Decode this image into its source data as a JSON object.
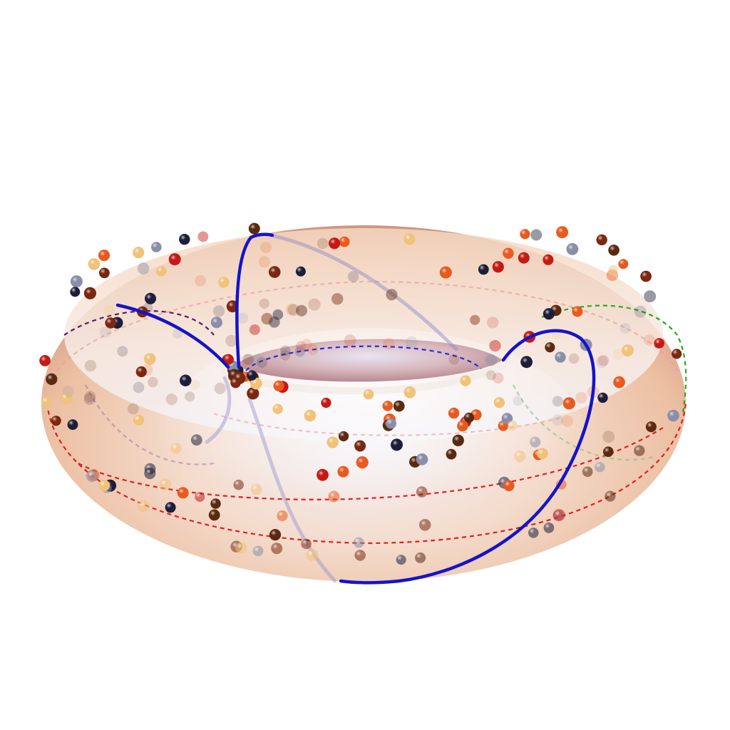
{
  "figure": {
    "kind": "torus-surface-with-points-and-curves",
    "colors": {
      "background": "#ffffff",
      "surface_light": "#f6f1f4",
      "surface_mid": "#f0c9ad",
      "surface_dark": "#c98f7a",
      "hole_shadow": "#b98a90",
      "highlight": "#f3f2fb",
      "solid_curve": "#1414c8",
      "dashed_blue": "#2a2ad2",
      "dashed_red": "#e02020",
      "dashed_green": "#22aa22",
      "dashed_purple": "#5a1a6a"
    },
    "point_palette": [
      "#1e1e3a",
      "#c41a14",
      "#e85a1e",
      "#f0c27a",
      "#7a2810",
      "#8a8ea8",
      "#5a2a10"
    ],
    "point_count_approx": 260,
    "curve_styles": [
      "solid-blue",
      "dashed-blue",
      "dashed-red",
      "dashed-green",
      "dashed-purple"
    ]
  }
}
